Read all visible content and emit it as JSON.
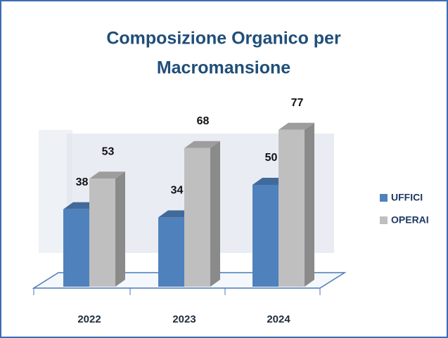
{
  "chart_data": {
    "type": "bar3d",
    "title": [
      "Composizione Organico per",
      "Macromansione"
    ],
    "categories": [
      "2022",
      "2023",
      "2024"
    ],
    "series": [
      {
        "name": "UFFICI",
        "color": "#4f81bd",
        "values": [
          38,
          34,
          50
        ]
      },
      {
        "name": "OPERAI",
        "color": "#bfbfbf",
        "values": [
          53,
          68,
          77
        ]
      }
    ],
    "ylim": [
      0,
      90
    ]
  }
}
